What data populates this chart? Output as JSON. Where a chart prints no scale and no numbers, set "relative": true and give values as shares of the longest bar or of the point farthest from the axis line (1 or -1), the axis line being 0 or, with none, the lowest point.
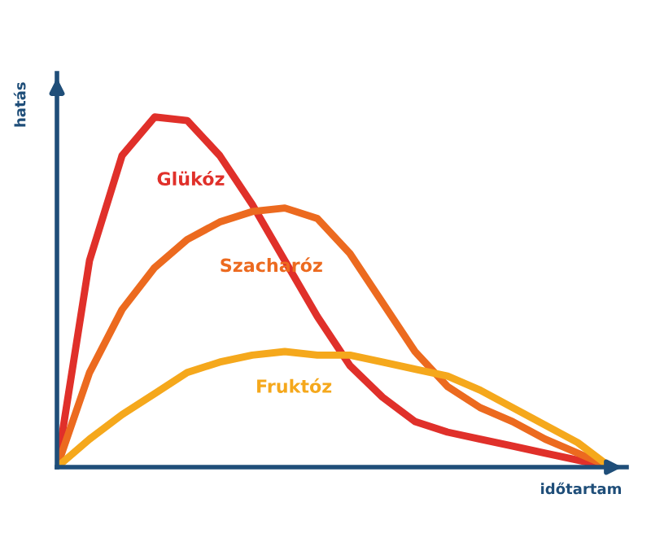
{
  "chart_data": {
    "type": "line",
    "relative": true,
    "xlabel": "időtartam",
    "ylabel": "hatás",
    "categories": [
      null,
      null,
      null,
      null,
      null,
      null,
      null,
      null,
      null,
      null,
      null,
      null,
      null,
      null,
      null,
      null,
      null,
      null
    ],
    "series": [
      {
        "name": "Glükóz",
        "color": "#e0302a",
        "values": [
          0,
          0.59,
          0.89,
          1,
          0.99,
          0.89,
          0.75,
          0.59,
          0.43,
          0.29,
          0.2,
          0.13,
          0.1,
          0.08,
          0.06,
          0.04,
          0.02,
          0
        ]
      },
      {
        "name": "Szacharóz",
        "color": "#ec6a1f",
        "values": [
          0,
          0.27,
          0.45,
          0.57,
          0.65,
          0.7,
          0.73,
          0.74,
          0.71,
          0.61,
          0.47,
          0.33,
          0.23,
          0.17,
          0.13,
          0.08,
          0.04,
          0
        ]
      },
      {
        "name": "Fruktóz",
        "color": "#f5a81c",
        "values": [
          0,
          0.08,
          0.15,
          0.21,
          0.27,
          0.3,
          0.32,
          0.33,
          0.32,
          0.32,
          0.3,
          0.28,
          0.26,
          0.22,
          0.17,
          0.12,
          0.07,
          0
        ]
      }
    ],
    "grid": false,
    "legend": false,
    "marker": "none",
    "line_style": "solid"
  }
}
